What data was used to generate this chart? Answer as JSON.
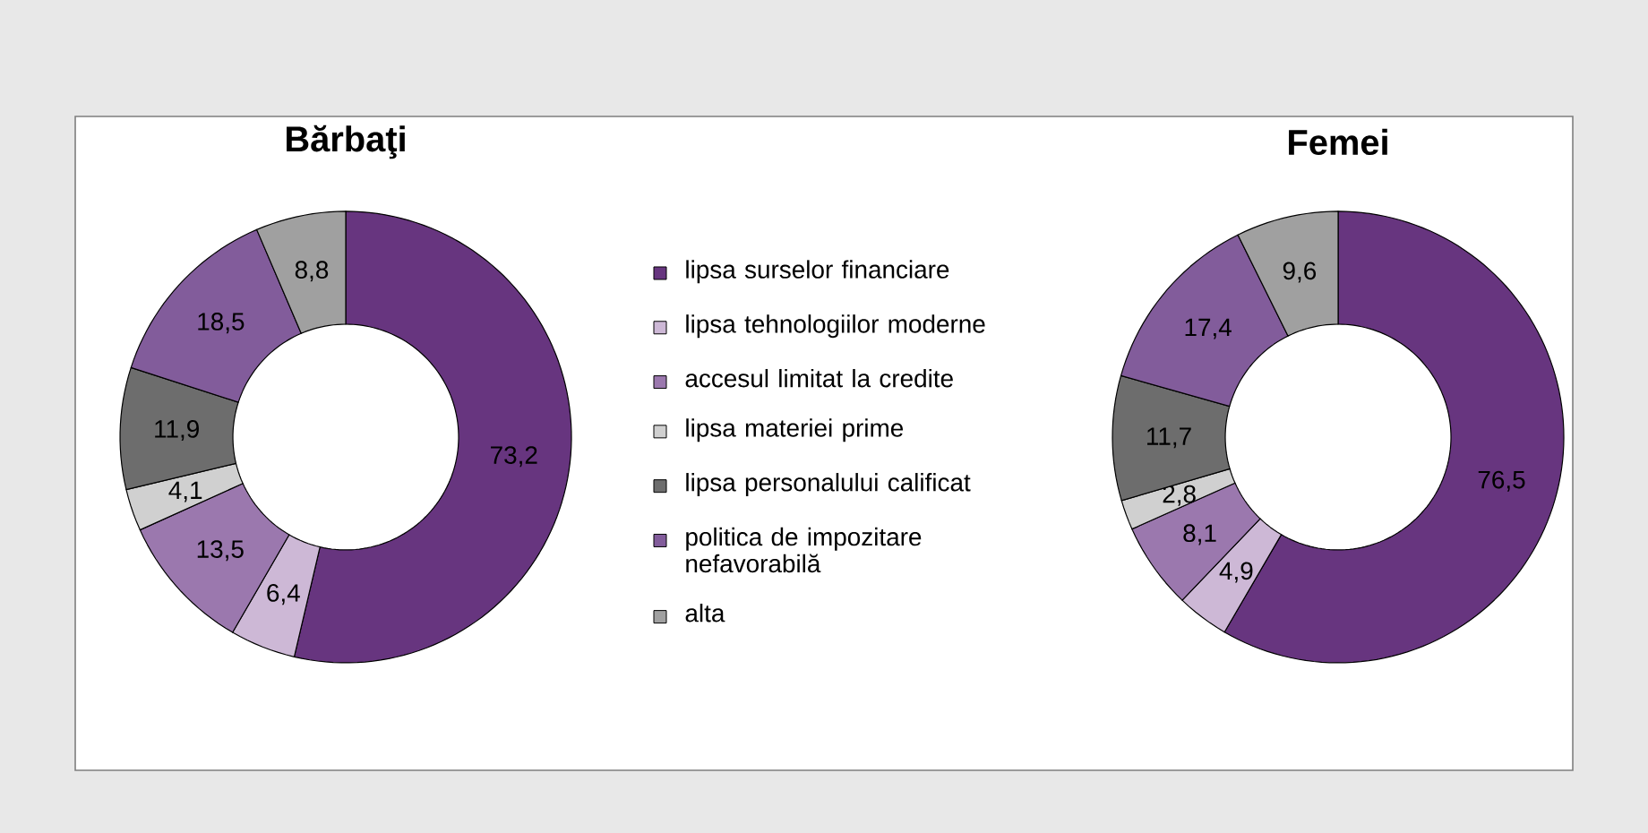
{
  "chart_data": [
    {
      "type": "donut",
      "title": "Bărbaţi",
      "categories": [
        "lipsa surselor financiare",
        "lipsa tehnologiilor moderne",
        "accesul limitat la credite",
        "lipsa materiei prime",
        "lipsa personalului calificat",
        "politica de impozitare nefavorabilă",
        "alta"
      ],
      "values": [
        73.2,
        6.4,
        13.5,
        4.1,
        11.9,
        18.5,
        8.8
      ],
      "value_labels": [
        "73,2",
        "6,4",
        "13,5",
        "4,1",
        "11,9",
        "18,5",
        "8,8"
      ],
      "colors": [
        "#67357f",
        "#cdb8d6",
        "#9b78ae",
        "#d0d0d0",
        "#6d6d6d",
        "#825c9b",
        "#a0a0a0"
      ],
      "legend": "right"
    },
    {
      "type": "donut",
      "title": "Femei",
      "categories": [
        null,
        null,
        null,
        null,
        null,
        null,
        null
      ],
      "values": [
        76.5,
        4.9,
        8.1,
        2.8,
        11.7,
        17.4,
        9.6
      ],
      "value_labels": [
        "76,5",
        "4,9",
        "8,1",
        "2,8",
        "11,7",
        "17,4",
        "9,6"
      ],
      "colors": [
        "#67357f",
        "#cdb8d6",
        "#9b78ae",
        "#d0d0d0",
        "#6d6d6d",
        "#825c9b",
        "#a0a0a0"
      ],
      "legend": false
    }
  ]
}
